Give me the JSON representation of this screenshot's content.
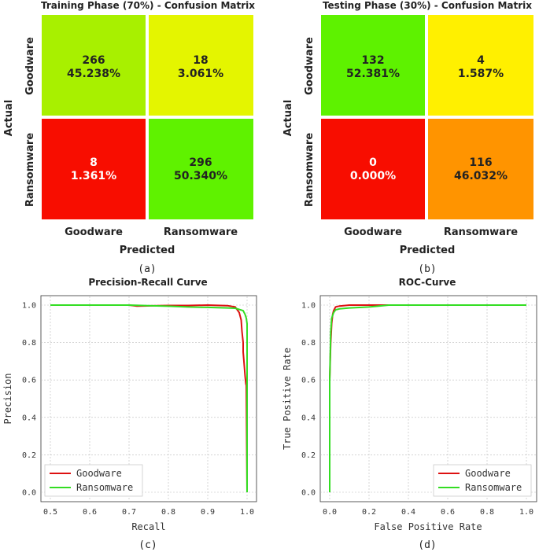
{
  "captions": [
    "(a)",
    "(b)",
    "(c)",
    "(d)"
  ],
  "chart_data": [
    {
      "type": "heatmap",
      "title": "Training Phase (70%) - Confusion Matrix",
      "xlabel": "Predicted",
      "ylabel": "Actual",
      "x_categories": [
        "Goodware",
        "Ransomware"
      ],
      "y_categories": [
        "Goodware",
        "Ransomware"
      ],
      "cells": [
        {
          "count": "266",
          "percent": "45.238%",
          "color": "#a8f000",
          "text_color": "#222222"
        },
        {
          "count": "18",
          "percent": "3.061%",
          "color": "#e4f500",
          "text_color": "#222222"
        },
        {
          "count": "8",
          "percent": "1.361%",
          "color": "#f80d00",
          "text_color": "#ffffff"
        },
        {
          "count": "296",
          "percent": "50.340%",
          "color": "#5ff200",
          "text_color": "#222222"
        }
      ]
    },
    {
      "type": "heatmap",
      "title": "Testing Phase (30%) - Confusion Matrix",
      "xlabel": "Predicted",
      "ylabel": "Actual",
      "x_categories": [
        "Goodware",
        "Ransomware"
      ],
      "y_categories": [
        "Goodware",
        "Ransomware"
      ],
      "cells": [
        {
          "count": "132",
          "percent": "52.381%",
          "color": "#5ef200",
          "text_color": "#222222"
        },
        {
          "count": "4",
          "percent": "1.587%",
          "color": "#fff000",
          "text_color": "#222222"
        },
        {
          "count": "0",
          "percent": "0.000%",
          "color": "#f80d00",
          "text_color": "#ffffff"
        },
        {
          "count": "116",
          "percent": "46.032%",
          "color": "#ff9400",
          "text_color": "#222222"
        }
      ]
    },
    {
      "type": "line",
      "title": "Precision-Recall Curve",
      "xlabel": "Recall",
      "ylabel": "Precision",
      "xlim": [
        0.5,
        1.0
      ],
      "ylim": [
        0.0,
        1.0
      ],
      "xticks": [
        "0.5",
        "0.6",
        "0.7",
        "0.8",
        "0.9",
        "1.0"
      ],
      "yticks": [
        "0.0",
        "0.2",
        "0.4",
        "0.6",
        "0.8",
        "1.0"
      ],
      "legend_position": "bottom-left",
      "series": [
        {
          "name": "Goodware",
          "color": "#dd1111",
          "x": [
            0.5,
            0.7,
            0.72,
            0.8,
            0.85,
            0.9,
            0.95,
            0.97,
            0.98,
            0.985,
            0.987,
            0.99,
            0.99,
            0.992,
            0.995,
            0.997,
            0.998,
            1.0
          ],
          "y": [
            1.0,
            1.0,
            0.995,
            0.998,
            0.998,
            1.0,
            0.997,
            0.99,
            0.96,
            0.92,
            0.86,
            0.8,
            0.75,
            0.7,
            0.62,
            0.58,
            0.57,
            0.0
          ]
        },
        {
          "name": "Ransomware",
          "color": "#33dd22",
          "x": [
            0.5,
            0.7,
            0.75,
            0.8,
            0.85,
            0.9,
            0.95,
            0.97,
            0.99,
            0.995,
            0.998,
            1.0,
            1.0
          ],
          "y": [
            1.0,
            1.0,
            0.997,
            0.994,
            0.99,
            0.988,
            0.985,
            0.983,
            0.97,
            0.95,
            0.93,
            0.9,
            0.0
          ]
        }
      ]
    },
    {
      "type": "line",
      "title": "ROC-Curve",
      "xlabel": "False Positive Rate",
      "ylabel": "True Positive Rate",
      "xlim": [
        0.0,
        1.0
      ],
      "ylim": [
        0.0,
        1.0
      ],
      "xticks": [
        "0.0",
        "0.2",
        "0.4",
        "0.6",
        "0.8",
        "1.0"
      ],
      "yticks": [
        "0.0",
        "0.2",
        "0.4",
        "0.6",
        "0.8",
        "1.0"
      ],
      "legend_position": "bottom-right",
      "series": [
        {
          "name": "Goodware",
          "color": "#dd1111",
          "x": [
            0.0,
            0.0,
            0.005,
            0.01,
            0.015,
            0.02,
            0.03,
            0.05,
            0.08,
            0.1,
            0.2,
            0.3,
            1.0
          ],
          "y": [
            0.0,
            0.6,
            0.8,
            0.9,
            0.95,
            0.97,
            0.99,
            0.995,
            0.998,
            1.0,
            1.0,
            1.0,
            1.0
          ]
        },
        {
          "name": "Ransomware",
          "color": "#33dd22",
          "x": [
            0.0,
            0.0,
            0.005,
            0.01,
            0.02,
            0.03,
            0.05,
            0.1,
            0.2,
            0.25,
            0.3,
            0.4,
            1.0
          ],
          "y": [
            0.0,
            0.6,
            0.85,
            0.93,
            0.96,
            0.975,
            0.98,
            0.985,
            0.99,
            0.995,
            1.0,
            1.0,
            1.0
          ]
        }
      ]
    }
  ]
}
